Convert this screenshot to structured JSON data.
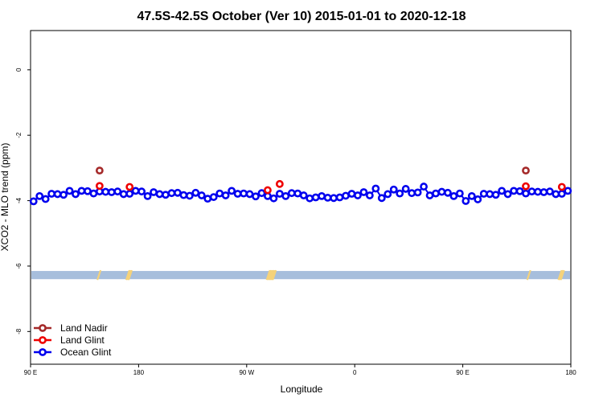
{
  "chart_data": {
    "type": "scatter",
    "title": "47.5S-42.5S October (Ver 10)   2015-01-01 to 2020-12-18",
    "xlabel": "Longitude",
    "ylabel": "XCO2 - MLO trend (ppm)",
    "xlim": [
      0,
      450
    ],
    "ylim": [
      -9,
      1.2
    ],
    "x_ticks": [
      {
        "value": 0,
        "label": "90 E"
      },
      {
        "value": 90,
        "label": "180"
      },
      {
        "value": 180,
        "label": "90 W"
      },
      {
        "value": 270,
        "label": "0"
      },
      {
        "value": 360,
        "label": "90 E"
      },
      {
        "value": 450,
        "label": "180"
      }
    ],
    "y_ticks": [
      {
        "value": 0,
        "label": "0"
      },
      {
        "value": -2,
        "label": "-2"
      },
      {
        "value": -4,
        "label": "-4"
      },
      {
        "value": -6,
        "label": "-6"
      },
      {
        "value": -8,
        "label": "-8"
      }
    ],
    "grid": false,
    "legend_position": "bottom-left",
    "background_band": {
      "y_from": -6.4,
      "y_to": -6.15,
      "color": "#a7bedc"
    },
    "land_marks": {
      "color": "#f5d27a",
      "x": [
        57,
        81,
        82,
        83,
        198,
        199,
        200,
        201,
        202,
        203,
        415,
        441,
        442,
        443
      ]
    },
    "series": [
      {
        "name": "Land Nadir",
        "color": "#a52a2a",
        "x": [
          57.5,
          412.5
        ],
        "y": [
          -3.08,
          -3.08
        ]
      },
      {
        "name": "Land Glint",
        "color": "#ee0000",
        "x": [
          57.5,
          82.5,
          197.5,
          207.5,
          412.5,
          442.5
        ],
        "y": [
          -3.55,
          -3.58,
          -3.68,
          -3.49,
          -3.56,
          -3.58
        ]
      },
      {
        "name": "Ocean Glint",
        "color": "#0000ee",
        "x": [
          2.5,
          7.5,
          12.5,
          17.5,
          22.5,
          27.5,
          32.5,
          37.5,
          42.5,
          47.5,
          52.5,
          57.5,
          62.5,
          67.5,
          72.5,
          77.5,
          82.5,
          87.5,
          92.5,
          97.5,
          102.5,
          107.5,
          112.5,
          117.5,
          122.5,
          127.5,
          132.5,
          137.5,
          142.5,
          147.5,
          152.5,
          157.5,
          162.5,
          167.5,
          172.5,
          177.5,
          182.5,
          187.5,
          192.5,
          197.5,
          202.5,
          207.5,
          212.5,
          217.5,
          222.5,
          227.5,
          232.5,
          237.5,
          242.5,
          247.5,
          252.5,
          257.5,
          262.5,
          267.5,
          272.5,
          277.5,
          282.5,
          287.5,
          292.5,
          297.5,
          302.5,
          307.5,
          312.5,
          317.5,
          322.5,
          327.5,
          332.5,
          337.5,
          342.5,
          347.5,
          352.5,
          357.5,
          362.5,
          367.5,
          372.5,
          377.5,
          382.5,
          387.5,
          392.5,
          397.5,
          402.5,
          407.5,
          412.5,
          417.5,
          422.5,
          427.5,
          432.5,
          437.5,
          442.5,
          447.5
        ],
        "y": [
          -4.02,
          -3.86,
          -3.95,
          -3.79,
          -3.8,
          -3.82,
          -3.7,
          -3.8,
          -3.7,
          -3.71,
          -3.78,
          -3.72,
          -3.73,
          -3.74,
          -3.72,
          -3.8,
          -3.79,
          -3.7,
          -3.72,
          -3.86,
          -3.74,
          -3.8,
          -3.82,
          -3.77,
          -3.76,
          -3.83,
          -3.85,
          -3.76,
          -3.84,
          -3.94,
          -3.89,
          -3.78,
          -3.84,
          -3.7,
          -3.79,
          -3.78,
          -3.8,
          -3.87,
          -3.77,
          -3.86,
          -3.93,
          -3.79,
          -3.86,
          -3.77,
          -3.78,
          -3.84,
          -3.93,
          -3.9,
          -3.86,
          -3.91,
          -3.92,
          -3.9,
          -3.85,
          -3.79,
          -3.84,
          -3.74,
          -3.84,
          -3.63,
          -3.92,
          -3.8,
          -3.66,
          -3.78,
          -3.64,
          -3.77,
          -3.75,
          -3.57,
          -3.84,
          -3.78,
          -3.73,
          -3.76,
          -3.86,
          -3.78,
          -4.01,
          -3.86,
          -3.96,
          -3.79,
          -3.8,
          -3.82,
          -3.7,
          -3.8,
          -3.7,
          -3.71,
          -3.78,
          -3.72,
          -3.73,
          -3.74,
          -3.72,
          -3.8,
          -3.79,
          -3.7
        ]
      }
    ]
  }
}
